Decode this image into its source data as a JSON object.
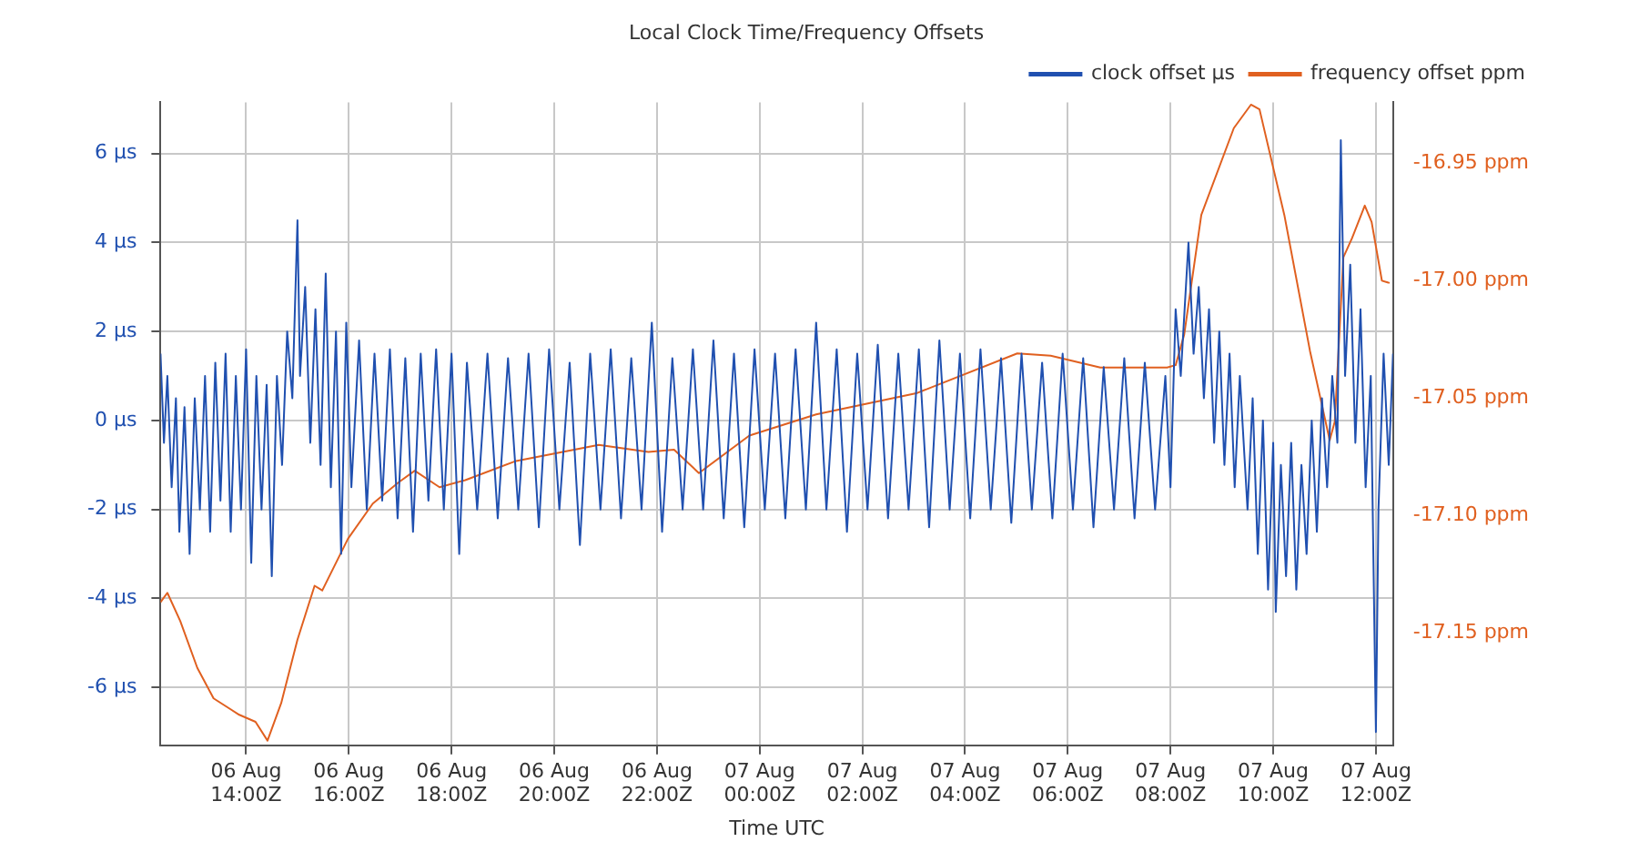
{
  "chart_data": {
    "type": "line",
    "title": "Local Clock Time/Frequency Offsets",
    "xlabel": "Time UTC",
    "xlim": [
      "--08-06T12:20",
      "--08-07T12:20"
    ],
    "xticks": [
      {
        "value": "--08-06T14:00",
        "label": "06 Aug 14:00Z"
      },
      {
        "value": "--08-06T16:00",
        "label": "06 Aug 16:00Z"
      },
      {
        "value": "--08-06T18:00",
        "label": "06 Aug 18:00Z"
      },
      {
        "value": "--08-06T20:00",
        "label": "06 Aug 20:00Z"
      },
      {
        "value": "--08-06T22:00",
        "label": "06 Aug 22:00Z"
      },
      {
        "value": "--08-07T00:00",
        "label": "07 Aug 00:00Z"
      },
      {
        "value": "--08-07T02:00",
        "label": "07 Aug 02:00Z"
      },
      {
        "value": "--08-07T04:00",
        "label": "07 Aug 04:00Z"
      },
      {
        "value": "--08-07T06:00",
        "label": "07 Aug 06:00Z"
      },
      {
        "value": "--08-07T08:00",
        "label": "07 Aug 08:00Z"
      },
      {
        "value": "--08-07T10:00",
        "label": "07 Aug 10:00Z"
      },
      {
        "value": "--08-07T12:00",
        "label": "07 Aug 12:00Z"
      }
    ],
    "ylim": [
      -7.3,
      7.15
    ],
    "yticks": [
      {
        "value": -6,
        "label": "-6 µs"
      },
      {
        "value": -4,
        "label": "-4 µs"
      },
      {
        "value": -2,
        "label": "-2 µs"
      },
      {
        "value": 0,
        "label": "0 µs"
      },
      {
        "value": 2,
        "label": "2 µs"
      },
      {
        "value": 4,
        "label": "4 µs"
      },
      {
        "value": 6,
        "label": "6 µs"
      }
    ],
    "y2lim": [
      -17.198,
      -16.924
    ],
    "y2ticks": [
      {
        "value": -17.15,
        "label": "-17.15 ppm"
      },
      {
        "value": -17.1,
        "label": "-17.10 ppm"
      },
      {
        "value": -17.05,
        "label": "-17.05 ppm"
      },
      {
        "value": -17,
        "label": "-17.00 ppm"
      },
      {
        "value": -16.95,
        "label": "-16.95 ppm"
      }
    ],
    "grid": true,
    "legend": "top right",
    "marker": "none",
    "line_style": "solid",
    "series": [
      {
        "name": "clock offset µs",
        "color": "#2050b0",
        "x": [
          "--08-06T12:20",
          "--08-06T12:24",
          "--08-06T12:28",
          "--08-06T12:33",
          "--08-06T12:38",
          "--08-06T12:42",
          "--08-06T12:48",
          "--08-06T12:54",
          "--08-06T13:00",
          "--08-06T13:06",
          "--08-06T13:12",
          "--08-06T13:18",
          "--08-06T13:24",
          "--08-06T13:30",
          "--08-06T13:36",
          "--08-06T13:42",
          "--08-06T13:48",
          "--08-06T13:54",
          "--08-06T14:00",
          "--08-06T14:06",
          "--08-06T14:12",
          "--08-06T14:18",
          "--08-06T14:24",
          "--08-06T14:30",
          "--08-06T14:36",
          "--08-06T14:42",
          "--08-06T14:48",
          "--08-06T14:54",
          "--08-06T15:00",
          "--08-06T15:03",
          "--08-06T15:09",
          "--08-06T15:15",
          "--08-06T15:21",
          "--08-06T15:27",
          "--08-06T15:33",
          "--08-06T15:39",
          "--08-06T15:45",
          "--08-06T15:51",
          "--08-06T15:57",
          "--08-06T16:03",
          "--08-06T16:12",
          "--08-06T16:21",
          "--08-06T16:30",
          "--08-06T16:39",
          "--08-06T16:48",
          "--08-06T16:57",
          "--08-06T17:06",
          "--08-06T17:15",
          "--08-06T17:24",
          "--08-06T17:33",
          "--08-06T17:42",
          "--08-06T17:51",
          "--08-06T18:00",
          "--08-06T18:09",
          "--08-06T18:18",
          "--08-06T18:30",
          "--08-06T18:42",
          "--08-06T18:54",
          "--08-06T19:06",
          "--08-06T19:18",
          "--08-06T19:30",
          "--08-06T19:42",
          "--08-06T19:54",
          "--08-06T20:06",
          "--08-06T20:18",
          "--08-06T20:30",
          "--08-06T20:42",
          "--08-06T20:54",
          "--08-06T21:06",
          "--08-06T21:18",
          "--08-06T21:30",
          "--08-06T21:42",
          "--08-06T21:54",
          "--08-06T22:06",
          "--08-06T22:18",
          "--08-06T22:30",
          "--08-06T22:42",
          "--08-06T22:54",
          "--08-06T23:06",
          "--08-06T23:18",
          "--08-06T23:30",
          "--08-06T23:42",
          "--08-06T23:54",
          "--08-07T00:06",
          "--08-07T00:18",
          "--08-07T00:30",
          "--08-07T00:42",
          "--08-07T00:54",
          "--08-07T01:06",
          "--08-07T01:18",
          "--08-07T01:30",
          "--08-07T01:42",
          "--08-07T01:54",
          "--08-07T02:06",
          "--08-07T02:18",
          "--08-07T02:30",
          "--08-07T02:42",
          "--08-07T02:54",
          "--08-07T03:06",
          "--08-07T03:18",
          "--08-07T03:30",
          "--08-07T03:42",
          "--08-07T03:54",
          "--08-07T04:06",
          "--08-07T04:18",
          "--08-07T04:30",
          "--08-07T04:42",
          "--08-07T04:54",
          "--08-07T05:06",
          "--08-07T05:18",
          "--08-07T05:30",
          "--08-07T05:42",
          "--08-07T05:54",
          "--08-07T06:06",
          "--08-07T06:18",
          "--08-07T06:30",
          "--08-07T06:42",
          "--08-07T06:54",
          "--08-07T07:06",
          "--08-07T07:18",
          "--08-07T07:30",
          "--08-07T07:42",
          "--08-07T07:54",
          "--08-07T08:00",
          "--08-07T08:06",
          "--08-07T08:12",
          "--08-07T08:21",
          "--08-07T08:27",
          "--08-07T08:33",
          "--08-07T08:39",
          "--08-07T08:45",
          "--08-07T08:51",
          "--08-07T08:57",
          "--08-07T09:03",
          "--08-07T09:09",
          "--08-07T09:15",
          "--08-07T09:21",
          "--08-07T09:30",
          "--08-07T09:36",
          "--08-07T09:42",
          "--08-07T09:48",
          "--08-07T09:54",
          "--08-07T10:00",
          "--08-07T10:03",
          "--08-07T10:09",
          "--08-07T10:15",
          "--08-07T10:21",
          "--08-07T10:27",
          "--08-07T10:33",
          "--08-07T10:39",
          "--08-07T10:45",
          "--08-07T10:51",
          "--08-07T10:57",
          "--08-07T11:03",
          "--08-07T11:09",
          "--08-07T11:15",
          "--08-07T11:19",
          "--08-07T11:24",
          "--08-07T11:30",
          "--08-07T11:36",
          "--08-07T11:42",
          "--08-07T11:48",
          "--08-07T11:54",
          "--08-07T12:00",
          "--08-07T12:03",
          "--08-07T12:09",
          "--08-07T12:15",
          "--08-07T12:20"
        ],
        "values": [
          1.5,
          -0.5,
          1.0,
          -1.5,
          0.5,
          -2.5,
          0.3,
          -3.0,
          0.5,
          -2.0,
          1.0,
          -2.5,
          1.3,
          -1.8,
          1.5,
          -2.5,
          1.0,
          -2.0,
          1.6,
          -3.2,
          1.0,
          -2.0,
          0.8,
          -3.5,
          1.0,
          -1.0,
          2.0,
          0.5,
          4.5,
          1.0,
          3.0,
          -0.5,
          2.5,
          -1.0,
          3.3,
          -1.5,
          2.0,
          -3.0,
          2.2,
          -1.5,
          1.8,
          -2.0,
          1.5,
          -1.8,
          1.6,
          -2.2,
          1.4,
          -2.5,
          1.5,
          -1.8,
          1.6,
          -2.0,
          1.5,
          -3.0,
          1.3,
          -2.0,
          1.5,
          -2.2,
          1.4,
          -2.0,
          1.5,
          -2.4,
          1.6,
          -2.0,
          1.3,
          -2.8,
          1.5,
          -2.0,
          1.6,
          -2.2,
          1.4,
          -2.0,
          2.2,
          -2.5,
          1.4,
          -2.0,
          1.6,
          -2.0,
          1.8,
          -2.2,
          1.5,
          -2.4,
          1.6,
          -2.0,
          1.5,
          -2.2,
          1.6,
          -2.0,
          2.2,
          -2.0,
          1.6,
          -2.5,
          1.5,
          -2.0,
          1.7,
          -2.2,
          1.5,
          -2.0,
          1.6,
          -2.4,
          1.8,
          -2.0,
          1.5,
          -2.2,
          1.6,
          -2.0,
          1.4,
          -2.3,
          1.5,
          -2.0,
          1.3,
          -2.2,
          1.5,
          -2.0,
          1.4,
          -2.4,
          1.2,
          -2.0,
          1.4,
          -2.2,
          1.3,
          -2.0,
          1.0,
          -1.5,
          2.5,
          1.0,
          4.0,
          1.5,
          3.0,
          0.5,
          2.5,
          -0.5,
          2.0,
          -1.0,
          1.5,
          -1.5,
          1.0,
          -2.0,
          0.5,
          -3.0,
          0.0,
          -3.8,
          -0.5,
          -4.3,
          -1.0,
          -3.5,
          -0.5,
          -3.8,
          -1.0,
          -3.0,
          0.0,
          -2.5,
          0.5,
          -1.5,
          1.0,
          -0.5,
          6.3,
          1.0,
          3.5,
          -0.5,
          2.5,
          -1.5,
          1.0,
          -7.0,
          -2.0,
          1.5,
          -1.0,
          1.5
        ]
      },
      {
        "name": "frequency offset ppm",
        "color": "#e06020",
        "axis": "y2",
        "x": [
          "--08-06T12:20",
          "--08-06T12:28",
          "--08-06T12:43",
          "--08-06T13:03",
          "--08-06T13:22",
          "--08-06T13:52",
          "--08-06T14:11",
          "--08-06T14:25",
          "--08-06T14:41",
          "--08-06T15:00",
          "--08-06T15:20",
          "--08-06T15:29",
          "--08-06T15:59",
          "--08-06T16:28",
          "--08-06T16:58",
          "--08-06T17:17",
          "--08-06T17:46",
          "--08-06T18:16",
          "--08-06T19:14",
          "--08-06T20:52",
          "--08-06T21:50",
          "--08-06T22:20",
          "--08-06T22:49",
          "--08-06T23:48",
          "--08-07T01:06",
          "--08-07T03:03",
          "--08-07T05:01",
          "--08-07T05:40",
          "--08-07T06:38",
          "--08-07T07:56",
          "--08-07T08:06",
          "--08-07T08:16",
          "--08-07T08:36",
          "--08-07T09:14",
          "--08-07T09:34",
          "--08-07T09:44",
          "--08-07T10:13",
          "--08-07T10:43",
          "--08-07T11:06",
          "--08-07T11:12",
          "--08-07T11:22",
          "--08-07T11:32",
          "--08-07T11:47",
          "--08-07T11:55",
          "--08-07T12:07",
          "--08-07T12:16"
        ],
        "values": [
          -17.137,
          -17.133,
          -17.145,
          -17.165,
          -17.178,
          -17.185,
          -17.188,
          -17.196,
          -17.18,
          -17.153,
          -17.13,
          -17.132,
          -17.11,
          -17.095,
          -17.086,
          -17.081,
          -17.088,
          -17.085,
          -17.077,
          -17.07,
          -17.073,
          -17.072,
          -17.082,
          -17.066,
          -17.057,
          -17.048,
          -17.031,
          -17.032,
          -17.037,
          -17.037,
          -17.036,
          -17.023,
          -16.972,
          -16.935,
          -16.925,
          -16.927,
          -16.972,
          -17.03,
          -17.068,
          -17.06,
          -16.99,
          -16.982,
          -16.968,
          -16.975,
          -17.0,
          -17.001
        ]
      }
    ]
  }
}
